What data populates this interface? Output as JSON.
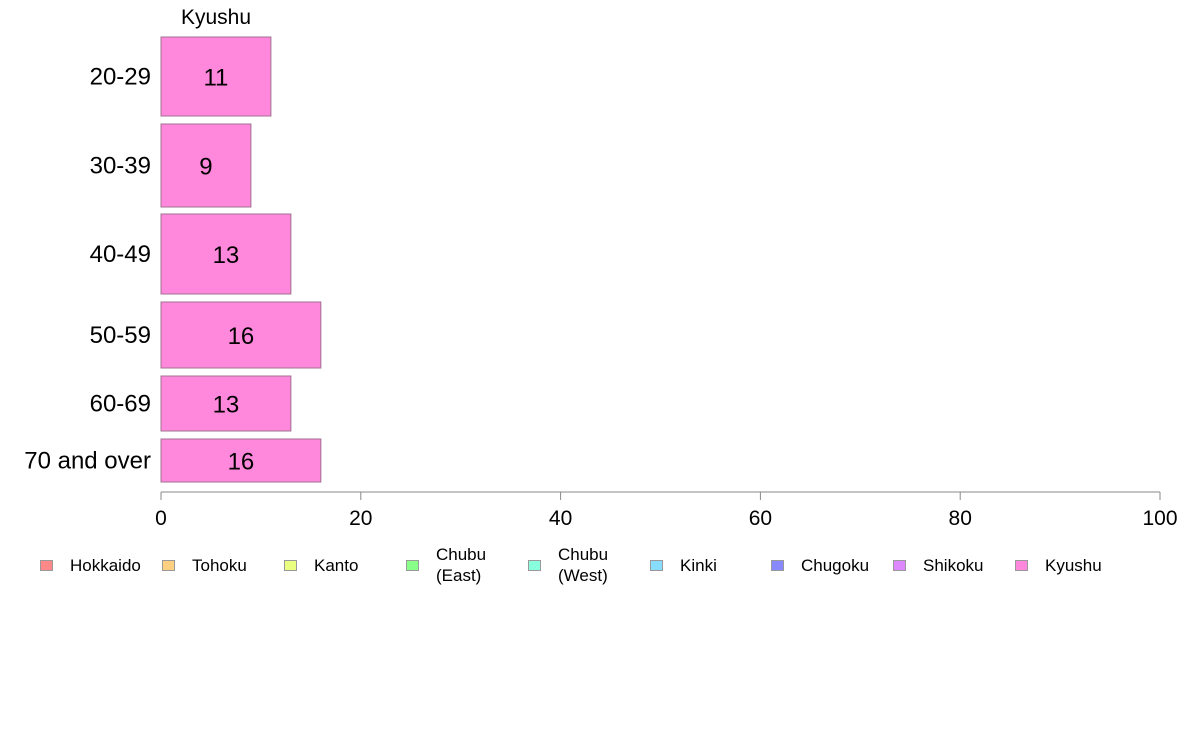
{
  "chart_data": {
    "type": "bar",
    "orientation": "horizontal",
    "stacked": true,
    "title": "Kyushu",
    "xlim": [
      0,
      100
    ],
    "xticks": [
      0,
      20,
      40,
      60,
      80,
      100
    ],
    "categories": [
      "20-29",
      "30-39",
      "40-49",
      "50-59",
      "60-69",
      "70 and over"
    ],
    "series": [
      {
        "name": "Kyushu",
        "color": "#ff88dd",
        "values": [
          11,
          9,
          13,
          16,
          13,
          16
        ]
      }
    ],
    "grid": false,
    "legend_position": "bottom",
    "legend": [
      {
        "label": "Hokkaido",
        "color": "#ff8888"
      },
      {
        "label": "Tohoku",
        "color": "#ffd080"
      },
      {
        "label": "Kanto",
        "color": "#e8ff80"
      },
      {
        "label": "Chubu\n(East)",
        "color": "#88ff88"
      },
      {
        "label": "Chubu\n(West)",
        "color": "#88ffdd"
      },
      {
        "label": "Kinki",
        "color": "#88ddff"
      },
      {
        "label": "Chugoku",
        "color": "#8888ff"
      },
      {
        "label": "Shikoku",
        "color": "#dd88ff"
      },
      {
        "label": "Kyushu",
        "color": "#ff88dd"
      }
    ]
  }
}
